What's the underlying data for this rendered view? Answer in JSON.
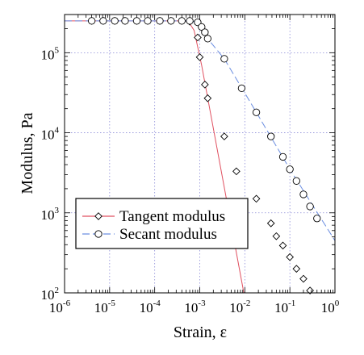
{
  "chart_data": {
    "type": "scatter",
    "xscale": "log",
    "yscale": "log",
    "xlim": [
      1e-06,
      1
    ],
    "ylim": [
      100,
      300000
    ],
    "grid": true,
    "xlabel": "Strain, ε",
    "ylabel": "Modulus, Pa",
    "x_ticks": [
      {
        "base": "10",
        "exp": "-6",
        "value": 1e-06
      },
      {
        "base": "10",
        "exp": "-5",
        "value": 1e-05
      },
      {
        "base": "10",
        "exp": "-4",
        "value": 0.0001
      },
      {
        "base": "10",
        "exp": "-3",
        "value": 0.001
      },
      {
        "base": "10",
        "exp": "-2",
        "value": 0.01
      },
      {
        "base": "10",
        "exp": "-1",
        "value": 0.1
      },
      {
        "base": "10",
        "exp": "0",
        "value": 1
      }
    ],
    "y_ticks": [
      {
        "base": "10",
        "exp": "2",
        "value": 100
      },
      {
        "base": "10",
        "exp": "3",
        "value": 1000
      },
      {
        "base": "10",
        "exp": "4",
        "value": 10000
      },
      {
        "base": "10",
        "exp": "5",
        "value": 100000
      }
    ],
    "legend": {
      "placement": "lower-left"
    },
    "series": [
      {
        "name": "Tangent modulus",
        "marker": "diamond",
        "color": "#d0021b",
        "line_color": "#e05060",
        "points": [
          [
            4e-06,
            250000
          ],
          [
            7.2e-06,
            250000
          ],
          [
            1.3e-05,
            250000
          ],
          [
            2.2e-05,
            250000
          ],
          [
            4e-05,
            250000
          ],
          [
            7e-05,
            250000
          ],
          [
            0.00013,
            250000
          ],
          [
            0.00023,
            250000
          ],
          [
            0.0004,
            250000
          ],
          [
            0.0006,
            245000
          ],
          [
            0.0009,
            155000
          ],
          [
            0.001,
            88000
          ],
          [
            0.0013,
            40000
          ],
          [
            0.0015,
            27000
          ],
          [
            0.0035,
            9000
          ],
          [
            0.0065,
            3300
          ],
          [
            0.018,
            1500
          ],
          [
            0.038,
            740
          ],
          [
            0.05,
            510
          ],
          [
            0.07,
            390
          ],
          [
            0.1,
            280
          ],
          [
            0.14,
            200
          ],
          [
            0.2,
            150
          ],
          [
            0.28,
            107
          ]
        ],
        "fit_line": [
          [
            1e-06,
            250000
          ],
          [
            0.00055,
            250000
          ],
          [
            0.00075,
            190000
          ],
          [
            0.0011,
            70000
          ],
          [
            0.0095,
            100
          ]
        ]
      },
      {
        "name": "Secant modulus",
        "marker": "circle",
        "color": "#1f3fbf",
        "line_color": "#6a8de0",
        "points": [
          [
            4e-06,
            250000
          ],
          [
            7.2e-06,
            250000
          ],
          [
            1.3e-05,
            250000
          ],
          [
            2.2e-05,
            250000
          ],
          [
            4e-05,
            250000
          ],
          [
            7e-05,
            250000
          ],
          [
            0.00013,
            250000
          ],
          [
            0.00023,
            250000
          ],
          [
            0.0004,
            250000
          ],
          [
            0.0006,
            250000
          ],
          [
            0.0009,
            240000
          ],
          [
            0.0011,
            210000
          ],
          [
            0.0013,
            180000
          ],
          [
            0.0015,
            150000
          ],
          [
            0.0035,
            84000
          ],
          [
            0.0085,
            36000
          ],
          [
            0.018,
            18000
          ],
          [
            0.038,
            9000
          ],
          [
            0.07,
            5000
          ],
          [
            0.1,
            3500
          ],
          [
            0.14,
            2500
          ],
          [
            0.2,
            1700
          ],
          [
            0.28,
            1200
          ],
          [
            0.4,
            850
          ]
        ],
        "fit_line": [
          [
            1e-06,
            250000
          ],
          [
            0.0006,
            250000
          ],
          [
            0.0009,
            240000
          ],
          [
            0.0015,
            150000
          ],
          [
            0.0035,
            84000
          ],
          [
            0.018,
            18000
          ],
          [
            0.1,
            3500
          ],
          [
            1,
            450
          ]
        ]
      }
    ]
  }
}
